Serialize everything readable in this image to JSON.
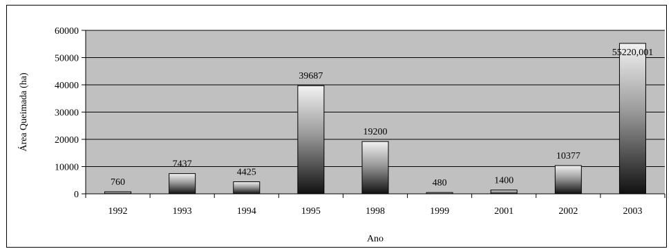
{
  "chart_data": {
    "type": "bar",
    "title": "",
    "xlabel": "Ano",
    "ylabel": "Área Queimada (ha)",
    "categories": [
      "1992",
      "1993",
      "1994",
      "1995",
      "1998",
      "1999",
      "2001",
      "2002",
      "2003"
    ],
    "values": [
      760,
      7437,
      4425,
      39687,
      19200,
      480,
      1400,
      10377,
      55220.001
    ],
    "data_labels": [
      "760",
      "7437",
      "4425",
      "39687",
      "19200",
      "480",
      "1400",
      "10377",
      "55220,001"
    ],
    "yticks": [
      "0",
      "10000",
      "20000",
      "30000",
      "40000",
      "50000",
      "60000"
    ],
    "ylim": [
      0,
      60000
    ],
    "grid": true,
    "legend": "none",
    "colors": {
      "plot_background": "#c0c0c0",
      "gridline": "#000000",
      "bar_top": "#f2f2f2",
      "bar_bottom": "#111111"
    }
  }
}
